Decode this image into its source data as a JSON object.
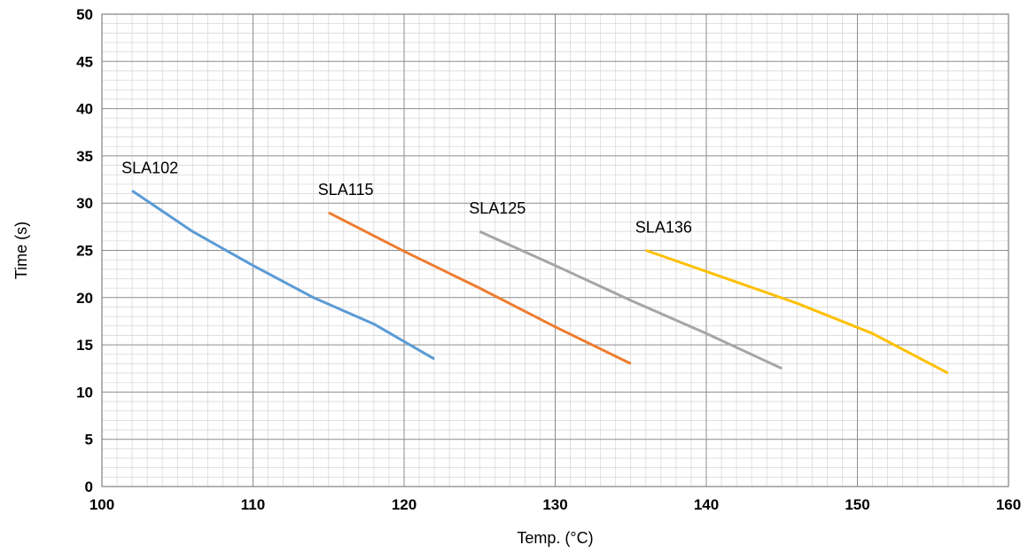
{
  "chart_data": {
    "type": "line",
    "xlabel": "Temp. (°C)",
    "ylabel": "Time (s)",
    "xlim": [
      100,
      160
    ],
    "ylim": [
      0,
      50
    ],
    "x_ticks": [
      100,
      110,
      120,
      130,
      140,
      150,
      160
    ],
    "y_ticks": [
      0,
      5,
      10,
      15,
      20,
      25,
      30,
      35,
      40,
      45,
      50
    ],
    "grid": true,
    "legend": "none",
    "series": [
      {
        "name": "SLA102",
        "color": "#5b9bd5",
        "points": [
          [
            102,
            31.3
          ],
          [
            106,
            27.0
          ],
          [
            110,
            23.4
          ],
          [
            114,
            20.0
          ],
          [
            118,
            17.2
          ],
          [
            122,
            13.5
          ]
        ]
      },
      {
        "name": "SLA115",
        "color": "#ed7d31",
        "points": [
          [
            115,
            29.0
          ],
          [
            120,
            24.9
          ],
          [
            125,
            21.0
          ],
          [
            130,
            16.9
          ],
          [
            135,
            13.0
          ]
        ]
      },
      {
        "name": "SLA125",
        "color": "#a5a5a5",
        "points": [
          [
            125,
            27.0
          ],
          [
            130,
            23.4
          ],
          [
            135,
            19.7
          ],
          [
            140,
            16.2
          ],
          [
            145,
            12.5
          ]
        ]
      },
      {
        "name": "SLA136",
        "color": "#ffc000",
        "points": [
          [
            136,
            25.0
          ],
          [
            141,
            22.2
          ],
          [
            146,
            19.4
          ],
          [
            151,
            16.2
          ],
          [
            156,
            12.0
          ]
        ]
      }
    ]
  }
}
